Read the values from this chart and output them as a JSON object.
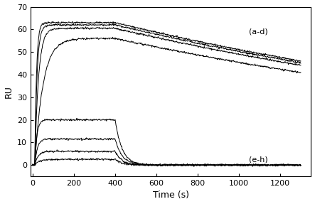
{
  "title": "",
  "xlabel": "Time (s)",
  "ylabel": "RU",
  "xlim": [
    -10,
    1350
  ],
  "ylim": [
    -5,
    70
  ],
  "yticks": [
    0,
    10,
    20,
    30,
    40,
    50,
    60,
    70
  ],
  "xticks": [
    0,
    200,
    400,
    600,
    800,
    1000,
    1200
  ],
  "label_ad": "(a-d)",
  "label_eh": "(e-h)",
  "t_assoc_start": 10,
  "t_assoc_end": 400,
  "t_total": 1300,
  "ad_plateaus": [
    63.0,
    62.0,
    60.5,
    56.0
  ],
  "ad_assoc_rates": [
    0.12,
    0.09,
    0.055,
    0.025
  ],
  "ad_dissoc_rates": [
    0.00035,
    0.00035,
    0.00035,
    0.00035
  ],
  "eh_plateaus": [
    20.0,
    11.5,
    6.0,
    2.5
  ],
  "eh_assoc_rates": [
    0.1,
    0.08,
    0.065,
    0.05
  ],
  "eh_dissoc_rates": [
    0.03,
    0.03,
    0.03,
    0.03
  ],
  "line_color": "#000000",
  "bg_color": "#ffffff",
  "noise_amplitude": 0.2,
  "font_size": 9
}
